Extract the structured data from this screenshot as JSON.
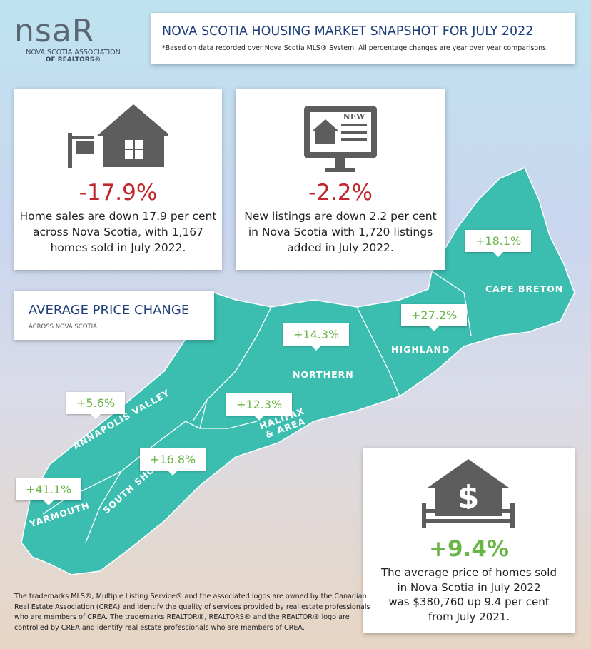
{
  "logo": {
    "mark_left": "ns",
    "mark_right": "aR",
    "line1": "NOVA SCOTIA ASSOCIATION",
    "line2": "OF REALTORS®"
  },
  "header": {
    "title": "NOVA SCOTIA HOUSING MARKET SNAPSHOT FOR JULY 2022",
    "subtitle": "*Based on data recorded over Nova Scotia MLS® System. All percentage changes are year over year comparisons."
  },
  "stats": [
    {
      "value": "-17.9%",
      "lines": [
        "Home sales are down 17.9 per cent",
        "across Nova Scotia, with 1,167",
        "homes sold in July 2022."
      ]
    },
    {
      "value": "-2.2%",
      "icon_label": "NEW",
      "lines": [
        "New listings are down 2.2 per cent",
        "in Nova Scotia with 1,720 listings",
        "added in July 2022."
      ]
    }
  ],
  "price_change": {
    "title": "AVERAGE PRICE CHANGE",
    "subtitle": "ACROSS NOVA SCOTIA"
  },
  "regions": [
    {
      "name": "CAPE BRETON",
      "change": "+18.1%"
    },
    {
      "name": "HIGHLAND",
      "change": "+27.2%"
    },
    {
      "name": "NORTHERN",
      "change": "+14.3%"
    },
    {
      "name": "HALIFAX & AREA",
      "change": "+12.3%"
    },
    {
      "name": "ANNAPOLIS VALLEY",
      "change": "+5.6%"
    },
    {
      "name": "SOUTH SHORE",
      "change": "+16.8%"
    },
    {
      "name": "YARMOUTH",
      "change": "+41.1%"
    }
  ],
  "average": {
    "value": "+9.4%",
    "lines": [
      "The average price of homes sold",
      "in Nova Scotia in July 2022",
      "was $380,760 up 9.4 per cent",
      "from July 2021."
    ]
  },
  "footer": {
    "lines": [
      "The trademarks MLS®, Multiple Listing Service® and the associated logos are owned by the Canadian",
      "Real Estate Association (CREA) and identify the quality of services provided by real estate professionals",
      "who are members of CREA. The trademarks REALTOR®, REALTORS® and the REALTOR® logo are",
      "controlled by CREA and identify real estate professionals who are members of CREA."
    ]
  }
}
